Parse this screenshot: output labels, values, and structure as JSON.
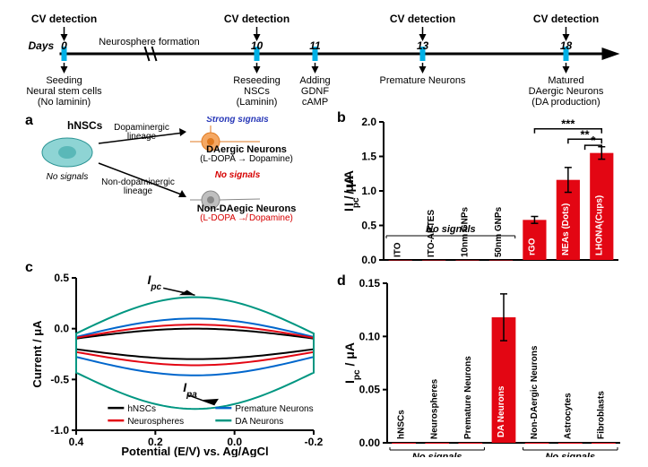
{
  "timeline": {
    "days_label": "Days",
    "points": [
      {
        "day": "0",
        "top": "CV detection",
        "bottom1": "Seeding",
        "bottom2": "Neural stem cells",
        "bottom3": "(No laminin)"
      },
      {
        "day": "10",
        "top": "CV detection",
        "bottom1": "Reseeding",
        "bottom2": "NSCs",
        "bottom3": "(Laminin)"
      },
      {
        "day": "11",
        "top": "",
        "bottom1": "Adding",
        "bottom2": "GDNF",
        "bottom3": "cAMP"
      },
      {
        "day": "13",
        "top": "CV detection",
        "bottom1": "Premature Neurons",
        "bottom2": "",
        "bottom3": ""
      },
      {
        "day": "18",
        "top": "CV detection",
        "bottom1": "Matured",
        "bottom2": "DAergic Neurons",
        "bottom3": "(DA production)"
      }
    ],
    "neurosphere": "Neurosphere formation"
  },
  "panel_a": {
    "hnscs": "hNSCs",
    "nosig": "No signals",
    "dop": "Dopaminergic\nlineage",
    "nondop": "Non-dopaminergic\nlineage",
    "strong": "Strong signals",
    "da": "DAergic Neurons",
    "da2": "(L-DOPA → Dopamine)",
    "nosig2": "No signals",
    "nonda": "Non-DAegic Neurons",
    "nonda2": "(L-DOPA ↛ Dopamine)"
  },
  "panel_b": {
    "type": "bar",
    "ylabel": "Ipc / μA",
    "ylim": [
      0,
      2.0
    ],
    "ytick_step": 0.5,
    "nosig": "No signals",
    "bars": [
      {
        "label": "ITO",
        "value": 0.0,
        "err": 0
      },
      {
        "label": "ITO-APTES",
        "value": 0.0,
        "err": 0
      },
      {
        "label": "10nm GNPs",
        "value": 0.0,
        "err": 0
      },
      {
        "label": "50nm GNPs",
        "value": 0.0,
        "err": 0
      },
      {
        "label": "rGO",
        "value": 0.58,
        "err": 0.05
      },
      {
        "label": "NEAs (Dots)",
        "value": 1.16,
        "err": 0.18
      },
      {
        "label": "LHONA(Cups)",
        "value": 1.55,
        "err": 0.09
      }
    ],
    "sig_lines": [
      {
        "from": 4,
        "to": 6,
        "y": 1.9,
        "stars": "***"
      },
      {
        "from": 5,
        "to": 6,
        "y": 1.75,
        "stars": "**"
      },
      {
        "from": 5.5,
        "to": 6,
        "y": 1.66,
        "stars": "*"
      }
    ],
    "bar_color": "#e30613",
    "bg": "#ffffff"
  },
  "panel_c": {
    "type": "cv",
    "xlabel": "Potential (E/V) vs. Ag/AgCl",
    "ylabel": "Current / μA",
    "xlim": [
      0.4,
      -0.2
    ],
    "xtick_step": 0.2,
    "ylim": [
      -1.0,
      0.5
    ],
    "ytick_step": 0.5,
    "ipc_label": "Ipc",
    "ipa_label": "Ipa",
    "series": [
      {
        "name": "hNSCs",
        "color": "#000000"
      },
      {
        "name": "Premature Neurons",
        "color": "#0066cc"
      },
      {
        "name": "Neurospheres",
        "color": "#e30613"
      },
      {
        "name": "DA Neurons",
        "color": "#009681"
      }
    ]
  },
  "panel_d": {
    "type": "bar",
    "ylabel": "Ipc / μA",
    "ylim": [
      0,
      0.15
    ],
    "ytick_step": 0.05,
    "nosig": "No signals",
    "bars": [
      {
        "label": "hNSCs",
        "value": 0.0
      },
      {
        "label": "Neurospheres",
        "value": 0.0
      },
      {
        "label": "Premature Neurons",
        "value": 0.0
      },
      {
        "label": "DA Neurons",
        "value": 0.118,
        "err": 0.022
      },
      {
        "label": "Non-DAergic Neurons",
        "value": 0.0
      },
      {
        "label": "Astrocytes",
        "value": 0.0
      },
      {
        "label": "Fibroblasts",
        "value": 0.0
      }
    ],
    "bar_color": "#e30613"
  }
}
